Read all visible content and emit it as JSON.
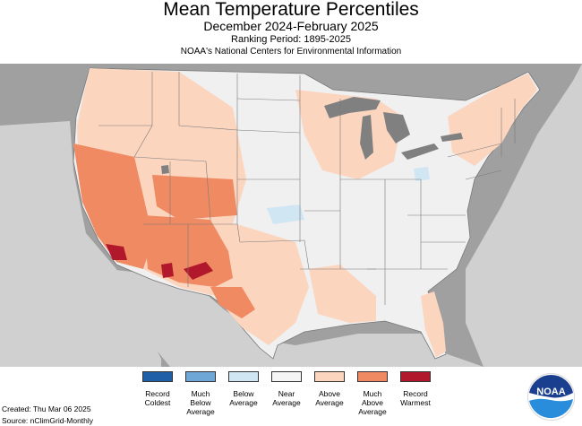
{
  "header": {
    "title": "Mean Temperature Percentiles",
    "subtitle": "December 2024-February 2025",
    "ranking": "Ranking Period: 1895-2025",
    "source_org": "NOAA's National Centers for Environmental Information"
  },
  "legend": [
    {
      "label": "Record\nColdest",
      "color": "#1f5fa8"
    },
    {
      "label": "Much\nBelow\nAverage",
      "color": "#6fa8d6"
    },
    {
      "label": "Below\nAverage",
      "color": "#d1e6f3"
    },
    {
      "label": "Near\nAverage",
      "color": "#f5f5f5"
    },
    {
      "label": "Above\nAverage",
      "color": "#fcd5bf"
    },
    {
      "label": "Much\nAbove\nAverage",
      "color": "#ef8a62"
    },
    {
      "label": "Record\nWarmest",
      "color": "#b2182b"
    }
  ],
  "footer": {
    "created": "Created: Thu Mar 06 2025",
    "source": "Source: nClimGrid-Monthly"
  },
  "logo": {
    "text": "NOAA"
  },
  "colors": {
    "background_land": "#a0a0a0",
    "ocean": "#d0d0d0",
    "lakes": "#808080",
    "near": "#f0f0f0",
    "above": "#fcd5bf",
    "much_above": "#ef8a62",
    "record_warm": "#b2182b",
    "below": "#d1e6f3"
  },
  "map": {
    "region": "Contiguous United States",
    "dominant_category": "Near Average",
    "warm_regions": "West and Southwest Much Above Average; Record Warmest in southern California, Arizona and New Mexico"
  }
}
